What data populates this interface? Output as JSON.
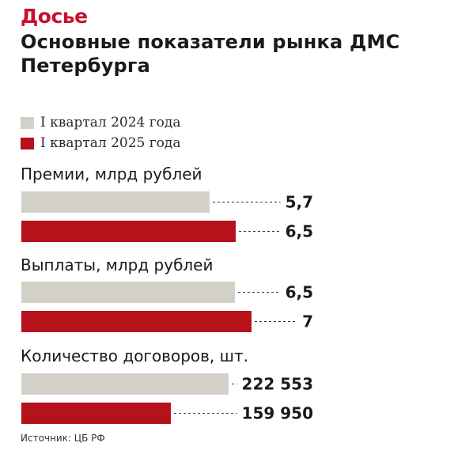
{
  "header": {
    "kicker": "Досье",
    "title": "Основные показатели рынка ДМС Петербурга"
  },
  "legend": [
    {
      "label": "I квартал 2024 года",
      "color": "#d3d1c7"
    },
    {
      "label": "I квартал 2025 года",
      "color": "#b5121b"
    }
  ],
  "chart_data": {
    "type": "bar",
    "orientation": "horizontal",
    "title": "Основные показатели рынка ДМС Петербурга",
    "series_names": [
      "I квартал 2024 года",
      "I квартал 2025 года"
    ],
    "groups": [
      {
        "label": "Премии, млрд рублей",
        "values": [
          5.7,
          6.5
        ],
        "value_labels": [
          "5,7",
          "6,5"
        ],
        "max_ref": 8.5
      },
      {
        "label": "Выплаты, млрд рублей",
        "values": [
          6.5,
          7
        ],
        "value_labels": [
          "6,5",
          "7"
        ],
        "max_ref": 8.55
      },
      {
        "label": "Количество договоров, шт.",
        "values": [
          222553,
          159950
        ],
        "value_labels": [
          "222 553",
          "159 950"
        ],
        "max_ref": 301000
      }
    ],
    "grid": false,
    "legend_position": "top-left"
  },
  "source": "Источник: ЦБ РФ"
}
